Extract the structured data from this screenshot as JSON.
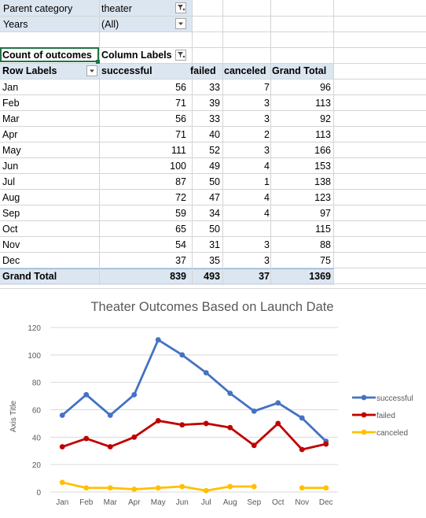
{
  "filters": [
    {
      "label": "Parent category",
      "value": "theater",
      "icon": "filter-applied-icon"
    },
    {
      "label": "Years",
      "value": "(All)",
      "icon": "chevron-down-icon"
    }
  ],
  "pivot": {
    "count_label": "Count of outcomes",
    "column_labels": "Column Labels",
    "row_labels": "Row Labels",
    "columns": [
      "successful",
      "failed",
      "canceled",
      "Grand Total"
    ],
    "rows": [
      {
        "month": "Jan",
        "successful": "56",
        "failed": "33",
        "canceled": "7",
        "total": "96"
      },
      {
        "month": "Feb",
        "successful": "71",
        "failed": "39",
        "canceled": "3",
        "total": "113"
      },
      {
        "month": "Mar",
        "successful": "56",
        "failed": "33",
        "canceled": "3",
        "total": "92"
      },
      {
        "month": "Apr",
        "successful": "71",
        "failed": "40",
        "canceled": "2",
        "total": "113"
      },
      {
        "month": "May",
        "successful": "111",
        "failed": "52",
        "canceled": "3",
        "total": "166"
      },
      {
        "month": "Jun",
        "successful": "100",
        "failed": "49",
        "canceled": "4",
        "total": "153"
      },
      {
        "month": "Jul",
        "successful": "87",
        "failed": "50",
        "canceled": "1",
        "total": "138"
      },
      {
        "month": "Aug",
        "successful": "72",
        "failed": "47",
        "canceled": "4",
        "total": "123"
      },
      {
        "month": "Sep",
        "successful": "59",
        "failed": "34",
        "canceled": "4",
        "total": "97"
      },
      {
        "month": "Oct",
        "successful": "65",
        "failed": "50",
        "canceled": "",
        "total": "115"
      },
      {
        "month": "Nov",
        "successful": "54",
        "failed": "31",
        "canceled": "3",
        "total": "88"
      },
      {
        "month": "Dec",
        "successful": "37",
        "failed": "35",
        "canceled": "3",
        "total": "75"
      }
    ],
    "grand_total": {
      "label": "Grand Total",
      "successful": "839",
      "failed": "493",
      "canceled": "37",
      "total": "1369"
    }
  },
  "chart_data": {
    "type": "line",
    "title": "Theater Outcomes Based on Launch Date",
    "xlabel": "",
    "ylabel": "Axis Title",
    "categories": [
      "Jan",
      "Feb",
      "Mar",
      "Apr",
      "May",
      "Jun",
      "Jul",
      "Aug",
      "Sep",
      "Oct",
      "Nov",
      "Dec"
    ],
    "ylim": [
      0,
      120
    ],
    "yticks": [
      0,
      20,
      40,
      60,
      80,
      100,
      120
    ],
    "grid": true,
    "legend": "right",
    "series": [
      {
        "name": "successful",
        "color": "#4472c4",
        "values": [
          56,
          71,
          56,
          71,
          111,
          100,
          87,
          72,
          59,
          65,
          54,
          37
        ]
      },
      {
        "name": "failed",
        "color": "#c00000",
        "values": [
          33,
          39,
          33,
          40,
          52,
          49,
          50,
          47,
          34,
          50,
          31,
          35
        ]
      },
      {
        "name": "canceled",
        "color": "#ffc000",
        "values": [
          7,
          3,
          3,
          2,
          3,
          4,
          1,
          4,
          4,
          null,
          3,
          3
        ]
      }
    ]
  }
}
